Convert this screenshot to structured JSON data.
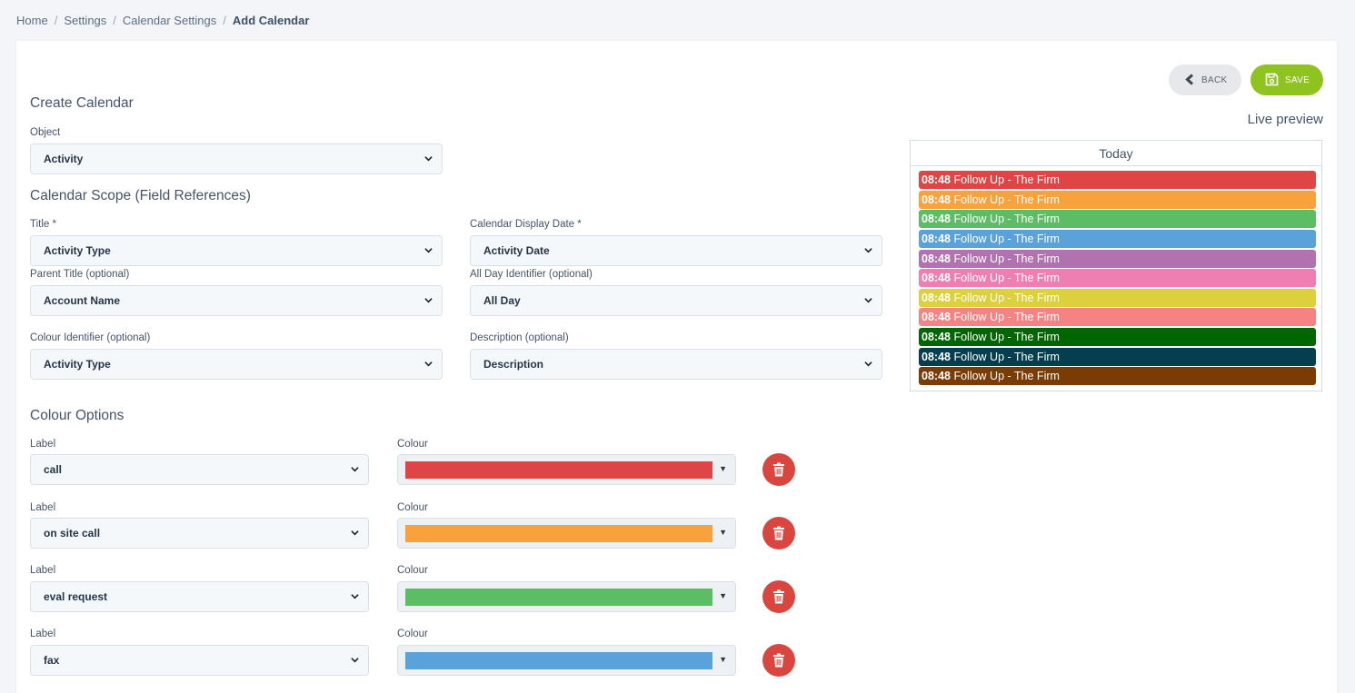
{
  "breadcrumb": {
    "items": [
      "Home",
      "Settings",
      "Calendar Settings"
    ],
    "current": "Add Calendar"
  },
  "form": {
    "create_title": "Create Calendar",
    "object_label": "Object",
    "object_value": "Activity",
    "scope_title": "Calendar Scope (Field References)",
    "title_label": "Title *",
    "title_value": "Activity Type",
    "display_date_label": "Calendar Display Date *",
    "display_date_value": "Activity Date",
    "parent_title_label": "Parent Title (optional)",
    "parent_title_value": "Account Name",
    "all_day_label": "All Day Identifier (optional)",
    "all_day_value": "All Day",
    "colour_identifier_label": "Colour Identifier (optional)",
    "colour_identifier_value": "Activity Type",
    "description_label": "Description (optional)",
    "description_value": "Description"
  },
  "colour_options": {
    "title": "Colour Options",
    "label_header": "Label",
    "colour_header": "Colour",
    "rows": [
      {
        "label": "call",
        "colour": "#e04545"
      },
      {
        "label": "on site call",
        "colour": "#f8a23e"
      },
      {
        "label": "eval request",
        "colour": "#5cbd65"
      },
      {
        "label": "fax",
        "colour": "#5aa2da"
      }
    ]
  },
  "buttons": {
    "back": "BACK",
    "save": "SAVE"
  },
  "preview": {
    "title": "Live preview",
    "day_header": "Today",
    "events": [
      {
        "time": "08:48",
        "text": "Follow Up - The Firm",
        "colour": "#e04545"
      },
      {
        "time": "08:48",
        "text": "Follow Up - The Firm",
        "colour": "#f8a23e"
      },
      {
        "time": "08:48",
        "text": "Follow Up - The Firm",
        "colour": "#5cbd65"
      },
      {
        "time": "08:48",
        "text": "Follow Up - The Firm",
        "colour": "#5aa2da"
      },
      {
        "time": "08:48",
        "text": "Follow Up - The Firm",
        "colour": "#b073b0"
      },
      {
        "time": "08:48",
        "text": "Follow Up - The Firm",
        "colour": "#ef7fb2"
      },
      {
        "time": "08:48",
        "text": "Follow Up - The Firm",
        "colour": "#dcd03c"
      },
      {
        "time": "08:48",
        "text": "Follow Up - The Firm",
        "colour": "#f58383"
      },
      {
        "time": "08:48",
        "text": "Follow Up - The Firm",
        "colour": "#006600"
      },
      {
        "time": "08:48",
        "text": "Follow Up - The Firm",
        "colour": "#053f4f"
      },
      {
        "time": "08:48",
        "text": "Follow Up - The Firm",
        "colour": "#7b3b05"
      }
    ]
  },
  "colors": {
    "accent_save": "#8fc31f",
    "delete": "#d9453f"
  }
}
